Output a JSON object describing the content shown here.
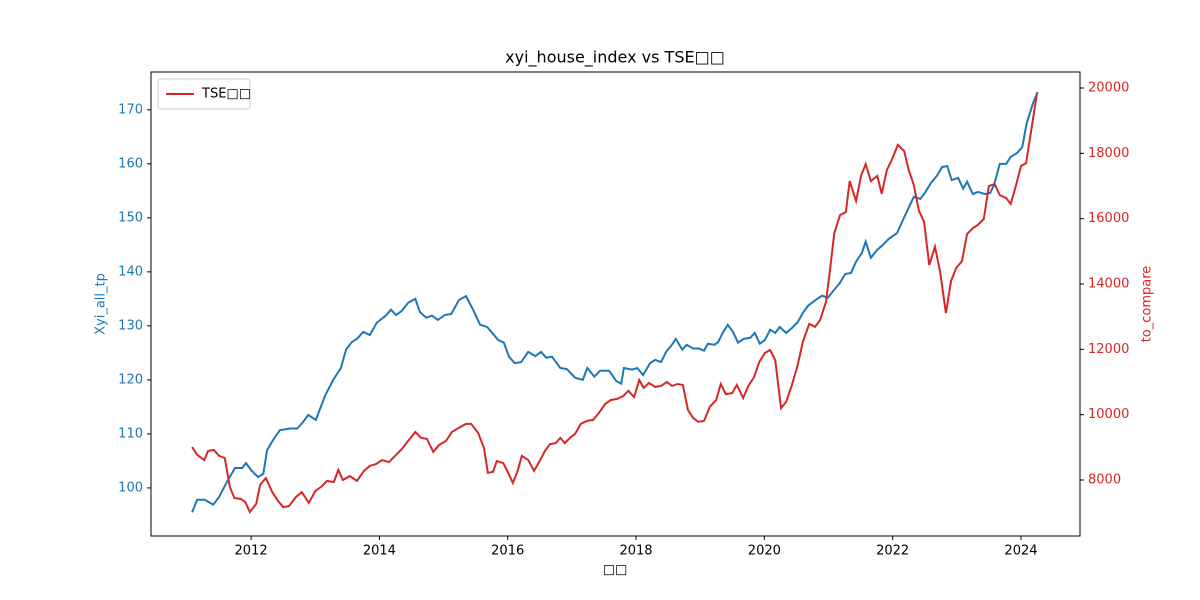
{
  "chart_data": {
    "type": "line",
    "title": "xyi_house_index vs TSE□□",
    "xlabel": "□□",
    "ylabel": "Xyi_all_tp",
    "y2label": "to_compare",
    "xlim": [
      2010.44,
      2024.92
    ],
    "xticks": [
      2012,
      2014,
      2016,
      2018,
      2020,
      2022,
      2024
    ],
    "ylim": [
      91.1,
      177.0
    ],
    "yticks": [
      100,
      110,
      120,
      130,
      140,
      150,
      160,
      170
    ],
    "y2lim": [
      6286,
      20490
    ],
    "y2ticks": [
      8000,
      10000,
      12000,
      14000,
      16000,
      18000,
      20000
    ],
    "legend": "upper left",
    "ycolor": "#1f77b4",
    "y2color": "#d62728",
    "series": [
      {
        "color": "#1f77b4",
        "axis": "y",
        "x": [
          2011.08,
          2011.16,
          2011.28,
          2011.41,
          2011.5,
          2011.64,
          2011.75,
          2011.86,
          2011.92,
          2012.0,
          2012.11,
          2012.19,
          2012.25,
          2012.37,
          2012.45,
          2012.61,
          2012.72,
          2012.81,
          2012.89,
          2013.01,
          2013.15,
          2013.28,
          2013.4,
          2013.48,
          2013.57,
          2013.65,
          2013.75,
          2013.85,
          2013.96,
          2014.1,
          2014.18,
          2014.26,
          2014.35,
          2014.45,
          2014.56,
          2014.63,
          2014.73,
          2014.82,
          2014.91,
          2015.02,
          2015.12,
          2015.24,
          2015.35,
          2015.46,
          2015.57,
          2015.68,
          2015.85,
          2015.94,
          2016.02,
          2016.11,
          2016.21,
          2016.32,
          2016.43,
          2016.52,
          2016.6,
          2016.69,
          2016.82,
          2016.92,
          2017.05,
          2017.17,
          2017.24,
          2017.35,
          2017.44,
          2017.58,
          2017.69,
          2017.77,
          2017.81,
          2017.94,
          2018.02,
          2018.11,
          2018.22,
          2018.3,
          2018.39,
          2018.47,
          2018.56,
          2018.62,
          2018.72,
          2018.79,
          2018.89,
          2018.98,
          2019.06,
          2019.12,
          2019.22,
          2019.28,
          2019.36,
          2019.43,
          2019.51,
          2019.59,
          2019.68,
          2019.78,
          2019.85,
          2019.93,
          2020.01,
          2020.09,
          2020.17,
          2020.24,
          2020.34,
          2020.43,
          2020.52,
          2020.6,
          2020.68,
          2020.8,
          2020.9,
          2020.99,
          2021.09,
          2021.18,
          2021.26,
          2021.35,
          2021.43,
          2021.52,
          2021.58,
          2021.66,
          2021.76,
          2021.83,
          2021.94,
          2022.07,
          2022.16,
          2022.25,
          2022.33,
          2022.43,
          2022.5,
          2022.6,
          2022.69,
          2022.77,
          2022.85,
          2022.92,
          2023.02,
          2023.1,
          2023.16,
          2023.25,
          2023.33,
          2023.44,
          2023.52,
          2023.58,
          2023.67,
          2023.77,
          2023.84,
          2023.94,
          2024.02,
          2024.09,
          2024.19,
          2024.26
        ],
        "values": [
          95.5,
          97.8,
          97.8,
          96.9,
          98.3,
          101.5,
          103.7,
          103.7,
          104.6,
          103.3,
          102.0,
          102.6,
          107.0,
          109.4,
          110.7,
          111.0,
          111.0,
          112.2,
          113.5,
          112.6,
          117.0,
          120.0,
          122.2,
          125.6,
          127.0,
          127.6,
          128.9,
          128.3,
          130.6,
          131.9,
          133.0,
          132.0,
          132.8,
          134.3,
          135.0,
          132.6,
          131.5,
          131.9,
          131.1,
          132.0,
          132.2,
          134.8,
          135.5,
          133.0,
          130.2,
          129.8,
          127.4,
          126.9,
          124.3,
          123.1,
          123.3,
          125.2,
          124.4,
          125.2,
          124.1,
          124.3,
          122.2,
          122.0,
          120.4,
          120.0,
          122.2,
          120.6,
          121.7,
          121.7,
          119.8,
          119.3,
          122.2,
          121.9,
          122.2,
          120.9,
          123.1,
          123.7,
          123.3,
          125.2,
          126.5,
          127.6,
          125.6,
          126.5,
          125.8,
          125.8,
          125.4,
          126.7,
          126.5,
          127.0,
          128.9,
          130.2,
          128.9,
          126.9,
          127.6,
          127.8,
          128.7,
          126.7,
          127.4,
          129.3,
          128.7,
          129.8,
          128.7,
          129.6,
          130.7,
          132.4,
          133.7,
          134.8,
          135.6,
          135.2,
          136.7,
          138.0,
          139.6,
          139.8,
          141.9,
          143.5,
          145.6,
          142.6,
          144.1,
          144.8,
          146.1,
          147.2,
          149.6,
          151.9,
          153.9,
          153.5,
          154.6,
          156.5,
          157.8,
          159.4,
          159.6,
          157.0,
          157.4,
          155.4,
          156.7,
          154.4,
          154.8,
          154.4,
          154.6,
          156.1,
          160.0,
          160.0,
          161.3,
          162.0,
          163.1,
          167.6,
          171.3,
          173.3
        ]
      },
      {
        "name": "TSE□□",
        "color": "#d62728",
        "axis": "y2",
        "x": [
          2011.08,
          2011.16,
          2011.27,
          2011.33,
          2011.42,
          2011.5,
          2011.59,
          2011.67,
          2011.74,
          2011.84,
          2011.91,
          2011.98,
          2012.08,
          2012.14,
          2012.23,
          2012.33,
          2012.42,
          2012.5,
          2012.59,
          2012.7,
          2012.79,
          2012.9,
          2013.0,
          2013.11,
          2013.18,
          2013.29,
          2013.36,
          2013.43,
          2013.54,
          2013.65,
          2013.76,
          2013.85,
          2013.95,
          2014.04,
          2014.15,
          2014.26,
          2014.35,
          2014.46,
          2014.56,
          2014.65,
          2014.74,
          2014.84,
          2014.93,
          2015.04,
          2015.13,
          2015.23,
          2015.35,
          2015.43,
          2015.54,
          2015.63,
          2015.69,
          2015.77,
          2015.83,
          2015.93,
          2016.0,
          2016.08,
          2016.15,
          2016.22,
          2016.32,
          2016.41,
          2016.49,
          2016.58,
          2016.66,
          2016.75,
          2016.82,
          2016.89,
          2016.97,
          2017.05,
          2017.14,
          2017.24,
          2017.33,
          2017.42,
          2017.52,
          2017.61,
          2017.7,
          2017.8,
          2017.88,
          2017.97,
          2018.05,
          2018.12,
          2018.2,
          2018.3,
          2018.39,
          2018.48,
          2018.56,
          2018.65,
          2018.73,
          2018.81,
          2018.89,
          2018.97,
          2019.06,
          2019.15,
          2019.25,
          2019.32,
          2019.4,
          2019.5,
          2019.57,
          2019.67,
          2019.75,
          2019.84,
          2019.92,
          2020.01,
          2020.09,
          2020.17,
          2020.26,
          2020.34,
          2020.43,
          2020.52,
          2020.6,
          2020.7,
          2020.79,
          2020.87,
          2020.96,
          2021.02,
          2021.09,
          2021.18,
          2021.27,
          2021.33,
          2021.43,
          2021.51,
          2021.58,
          2021.66,
          2021.76,
          2021.83,
          2021.91,
          2022.0,
          2022.08,
          2022.18,
          2022.25,
          2022.33,
          2022.41,
          2022.49,
          2022.57,
          2022.66,
          2022.74,
          2022.83,
          2022.91,
          2022.99,
          2023.08,
          2023.16,
          2023.25,
          2023.33,
          2023.42,
          2023.5,
          2023.59,
          2023.67,
          2023.77,
          2023.84,
          2023.92,
          2024.0,
          2024.08,
          2024.16,
          2024.25
        ],
        "values": [
          9010,
          8770,
          8610,
          8890,
          8920,
          8740,
          8670,
          7780,
          7450,
          7420,
          7330,
          7020,
          7270,
          7850,
          8060,
          7630,
          7360,
          7170,
          7200,
          7480,
          7630,
          7300,
          7660,
          7820,
          7970,
          7940,
          8310,
          8000,
          8120,
          7970,
          8280,
          8430,
          8490,
          8610,
          8550,
          8770,
          8950,
          9230,
          9470,
          9290,
          9260,
          8860,
          9070,
          9200,
          9470,
          9590,
          9720,
          9720,
          9440,
          8980,
          8220,
          8250,
          8580,
          8520,
          8250,
          7910,
          8250,
          8740,
          8610,
          8280,
          8550,
          8890,
          9100,
          9130,
          9290,
          9130,
          9290,
          9410,
          9720,
          9810,
          9840,
          10050,
          10330,
          10450,
          10480,
          10570,
          10730,
          10540,
          11060,
          10820,
          10970,
          10850,
          10880,
          11000,
          10880,
          10940,
          10910,
          10140,
          9900,
          9780,
          9810,
          10240,
          10450,
          10940,
          10630,
          10660,
          10910,
          10510,
          10880,
          11150,
          11610,
          11890,
          11980,
          11670,
          10200,
          10390,
          10910,
          11520,
          12230,
          12780,
          12690,
          12900,
          13450,
          14370,
          15560,
          16110,
          16200,
          17150,
          16540,
          17330,
          17670,
          17150,
          17310,
          16760,
          17490,
          17860,
          18260,
          18070,
          17490,
          17030,
          16240,
          15900,
          14580,
          15140,
          14370,
          13110,
          14090,
          14490,
          14700,
          15530,
          15710,
          15810,
          15990,
          17000,
          17060,
          16720,
          16630,
          16450,
          17000,
          17610,
          17700,
          18710,
          19850
        ]
      }
    ]
  }
}
